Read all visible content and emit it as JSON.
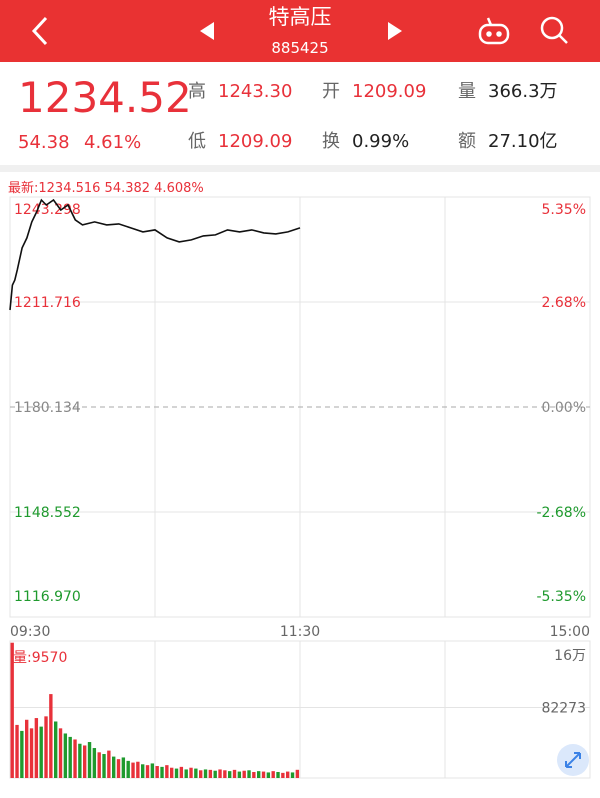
{
  "header": {
    "title": "特高压",
    "code": "885425"
  },
  "quote": {
    "price": "1234.52",
    "change": "54.38",
    "change_pct": "4.61%",
    "high_label": "高",
    "high": "1243.30",
    "open_label": "开",
    "open": "1209.09",
    "volume_label": "量",
    "volume": "366.3万",
    "low_label": "低",
    "low": "1209.09",
    "turnover_label": "换",
    "turnover": "0.99%",
    "amount_label": "额",
    "amount": "27.10亿"
  },
  "chart_data": [
    {
      "type": "line",
      "title": "最新:1234.516 54.382 4.608%",
      "color": "#111111",
      "up_color": "#e8313a",
      "down_color": "#1f9a2e",
      "flat_color": "#888888",
      "x": [
        0,
        1,
        2,
        3,
        5,
        7,
        9,
        11,
        13,
        15,
        18,
        21,
        24,
        27,
        30,
        35,
        40,
        45,
        50,
        55,
        60,
        65,
        70,
        75,
        80,
        85,
        90,
        95,
        100,
        105,
        110,
        115,
        120
      ],
      "values": [
        1209.3,
        1216.8,
        1218.3,
        1221.4,
        1228.0,
        1231.0,
        1235.8,
        1238.8,
        1242.4,
        1240.9,
        1242.4,
        1239.4,
        1240.9,
        1236.4,
        1234.9,
        1235.8,
        1234.9,
        1235.2,
        1234.0,
        1232.8,
        1233.4,
        1231.0,
        1229.8,
        1230.4,
        1231.6,
        1231.9,
        1233.4,
        1232.8,
        1233.4,
        1232.5,
        1232.2,
        1232.8,
        1234.0
      ],
      "xlim": [
        0,
        240
      ],
      "xticks": [
        {
          "value": 0,
          "label": "09:30"
        },
        {
          "value": 120,
          "label": "11:30"
        },
        {
          "value": 240,
          "label": "15:00"
        }
      ],
      "ylim": [
        1116.97,
        1243.298
      ],
      "yticks": [
        1243.298,
        1211.716,
        {
          "value": 1180.134,
          "label": "1180.134"
        },
        1148.552,
        {
          "value": 1116.97,
          "label": "1116.970"
        }
      ],
      "y2lim": [
        -5.352,
        5.352
      ],
      "y2ticks": [
        {
          "value": 5.35,
          "label": "5.35%"
        },
        {
          "value": 2.68,
          "label": "2.68%"
        },
        {
          "value": 0,
          "label": "0.00%"
        },
        {
          "value": -2.68,
          "label": "-2.68%"
        },
        {
          "value": -5.35,
          "label": "-5.35%"
        }
      ]
    },
    {
      "type": "bar",
      "title": "量:9570",
      "x": [
        0,
        2,
        4,
        6,
        8,
        10,
        12,
        14,
        16,
        18,
        20,
        22,
        24,
        26,
        28,
        30,
        32,
        34,
        36,
        38,
        40,
        42,
        44,
        46,
        48,
        50,
        52,
        54,
        56,
        58,
        60,
        62,
        64,
        66,
        68,
        70,
        72,
        74,
        76,
        78,
        80,
        82,
        84,
        86,
        88,
        90,
        92,
        94,
        96,
        98,
        100,
        102,
        104,
        106,
        108,
        110,
        112,
        114,
        116,
        118
      ],
      "values": [
        158000,
        62000,
        55000,
        68000,
        58000,
        70000,
        60000,
        72000,
        98000,
        66000,
        58000,
        52000,
        48000,
        45000,
        40000,
        38000,
        42000,
        35000,
        30000,
        28000,
        32000,
        25000,
        22000,
        24000,
        20000,
        18000,
        19000,
        16000,
        15000,
        17000,
        14000,
        13000,
        15000,
        12000,
        11000,
        13000,
        10000,
        12000,
        11000,
        9000,
        10000,
        9500,
        8500,
        10000,
        9000,
        8000,
        9500,
        7500,
        8500,
        9000,
        7000,
        8000,
        7500,
        6500,
        8000,
        7000,
        6000,
        7500,
        6500,
        9570
      ],
      "colors": [
        "#e8313a",
        "#e8313a",
        "#1f9a2e",
        "#e8313a",
        "#e8313a",
        "#e8313a",
        "#1f9a2e",
        "#e8313a",
        "#e8313a",
        "#1f9a2e",
        "#e8313a",
        "#1f9a2e",
        "#1f9a2e",
        "#e8313a",
        "#1f9a2e",
        "#e8313a",
        "#1f9a2e",
        "#1f9a2e",
        "#e8313a",
        "#1f9a2e",
        "#e8313a",
        "#1f9a2e",
        "#e8313a",
        "#1f9a2e",
        "#1f9a2e",
        "#e8313a",
        "#e8313a",
        "#1f9a2e",
        "#e8313a",
        "#1f9a2e",
        "#e8313a",
        "#1f9a2e",
        "#e8313a",
        "#e8313a",
        "#1f9a2e",
        "#e8313a",
        "#1f9a2e",
        "#e8313a",
        "#1f9a2e",
        "#e8313a",
        "#1f9a2e",
        "#e8313a",
        "#1f9a2e",
        "#e8313a",
        "#e8313a",
        "#1f9a2e",
        "#e8313a",
        "#1f9a2e",
        "#e8313a",
        "#1f9a2e",
        "#e8313a",
        "#1f9a2e",
        "#e8313a",
        "#1f9a2e",
        "#e8313a",
        "#1f9a2e",
        "#e8313a",
        "#e8313a",
        "#1f9a2e",
        "#e8313a"
      ],
      "xlim": [
        0,
        240
      ],
      "ylim": [
        0,
        160000
      ],
      "yticks": [
        {
          "value": 160000,
          "label": "16万"
        },
        82273
      ]
    }
  ]
}
